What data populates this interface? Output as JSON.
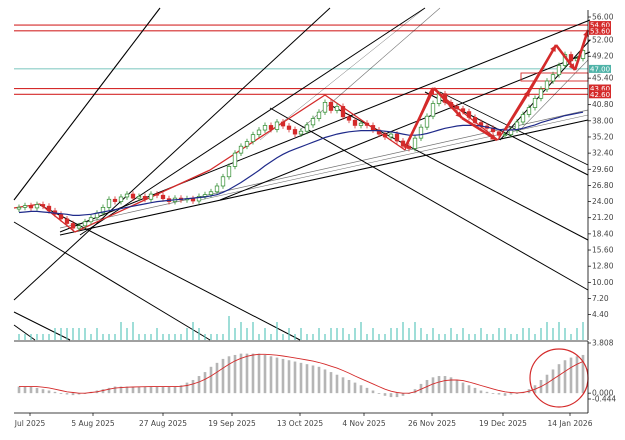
{
  "chart_data": [
    {
      "type": "candlestick",
      "title": "",
      "ylim": [
        0,
        56
      ],
      "y_ticks": [
        "56.00",
        "52.00",
        "49.20",
        "45.40",
        "40.80",
        "38.00",
        "35.20",
        "32.40",
        "29.60",
        "26.80",
        "24.00",
        "21.20",
        "18.40",
        "15.60",
        "12.80",
        "10.00",
        "7.20",
        "4.40"
      ],
      "x_ticks": [
        "Jul 2025",
        "5 Aug 2025",
        "27 Aug 2025",
        "19 Sep 2025",
        "13 Oct 2025",
        "4 Nov 2025",
        "26 Nov 2025",
        "19 Dec 2025",
        "14 Jan 2026"
      ],
      "price_tags": [
        "54.60",
        "53.60",
        "47.00",
        "43.60",
        "42.60"
      ],
      "colors": {
        "bull": "#2e8b2e",
        "bear": "#d42a2a",
        "ma": "#1f2a8a",
        "channel": "#000000",
        "level": "#d42a2a",
        "teal": "#4fb3a8",
        "volume": "#5fc7bd"
      },
      "closes": [
        23,
        23.3,
        22.9,
        23.5,
        23.2,
        22.4,
        21.8,
        21,
        20.2,
        19.4,
        19.8,
        20.5,
        21.2,
        22,
        23,
        24.4,
        24,
        24.8,
        25.3,
        24.6,
        24.9,
        24.4,
        25.3,
        25.1,
        24.5,
        24,
        24.6,
        24.3,
        24.5,
        24.1,
        24.9,
        25.2,
        25.7,
        26.7,
        28.3,
        30.1,
        32.4,
        33.6,
        34.4,
        35.6,
        36.4,
        37.2,
        36.5,
        37.8,
        37.1,
        36.5,
        35.7,
        36.2,
        37.3,
        38.4,
        39.5,
        41.2,
        39.8,
        40.5,
        38.7,
        38.1,
        37.2,
        37.6,
        37.2,
        36.4,
        35.7,
        35.2,
        35.7,
        34.5,
        33.6,
        33.2,
        35,
        36.9,
        38.8,
        41,
        42.7,
        41.2,
        40.5,
        40.1,
        39.6,
        38.6,
        37.7,
        37.1,
        36.7,
        36.1,
        35.5,
        35.6,
        36.4,
        37.8,
        39.1,
        40.3,
        41.9,
        43.5,
        44.9,
        46,
        47.6,
        49.5,
        48.4,
        48.8,
        50.2
      ],
      "volume": [
        1,
        1,
        1,
        1,
        1,
        1,
        2,
        2,
        2,
        2,
        2,
        2,
        1,
        2,
        1,
        1,
        1,
        3,
        2,
        3,
        1,
        1,
        1,
        2,
        1,
        1,
        1,
        1,
        2,
        3,
        2,
        1,
        1,
        1,
        1,
        4,
        2,
        3,
        2,
        3,
        1,
        2,
        1,
        3,
        1,
        2,
        1,
        2,
        1,
        1,
        2,
        1,
        2,
        2,
        2,
        1,
        2,
        3,
        1,
        2,
        1,
        1,
        2,
        2,
        3,
        2,
        3,
        2,
        1,
        2,
        1,
        1,
        2,
        1,
        2,
        1,
        1,
        2,
        1,
        1,
        2,
        2,
        1,
        1,
        2,
        2,
        1,
        2,
        3,
        2,
        3,
        2,
        1,
        2,
        3
      ],
      "ma": [
        22.1,
        22.2,
        22.3,
        22.3,
        22.2,
        22.1,
        22.0,
        21.9,
        21.8,
        21.6,
        21.6,
        21.7,
        21.8,
        22,
        22.2,
        22.4,
        22.6,
        22.8,
        23,
        23.2,
        23.4,
        23.6,
        23.8,
        24,
        24.1,
        24.2,
        24.3,
        24.4,
        24.5,
        24.6,
        24.7,
        24.8,
        25,
        25.2,
        25.6,
        26.1,
        26.7,
        27.3,
        28,
        28.7,
        29.4,
        30.2,
        30.9,
        31.6,
        32.2,
        32.7,
        33.1,
        33.5,
        33.9,
        34.3,
        34.7,
        35.1,
        35.4,
        35.7,
        35.9,
        36.1,
        36.2,
        36.3,
        36.3,
        36.3,
        36.3,
        36.2,
        36.1,
        35.9,
        35.7,
        35.5,
        35.5,
        35.6,
        35.8,
        36.1,
        36.4,
        36.7,
        36.9,
        37.1,
        37.2,
        37.2,
        37.2,
        37.1,
        36.9,
        36.7,
        36.5,
        36.4,
        36.4,
        36.5,
        36.7,
        37,
        37.3,
        37.7,
        38,
        38.3,
        38.6,
        38.9,
        39.1,
        39.3,
        39.5
      ]
    },
    {
      "type": "histogram",
      "title": "",
      "ylim": [
        -0.444,
        3.808
      ],
      "y_ticks": [
        "3.808",
        "0.000",
        "-0.444"
      ],
      "values": [
        0.5,
        0.5,
        0.5,
        0.4,
        0.3,
        0.2,
        0.1,
        0,
        -0.1,
        -0.15,
        -0.1,
        0,
        0.1,
        0.2,
        0.3,
        0.4,
        0.5,
        0.5,
        0.5,
        0.5,
        0.5,
        0.5,
        0.5,
        0.5,
        0.5,
        0.5,
        0.5,
        0.6,
        0.8,
        1,
        1.3,
        1.6,
        2,
        2.3,
        2.6,
        2.8,
        2.9,
        3.0,
        3.0,
        3.0,
        3.0,
        2.9,
        2.8,
        2.7,
        2.6,
        2.5,
        2.4,
        2.3,
        2.2,
        2.1,
        2,
        1.8,
        1.6,
        1.4,
        1.2,
        1.0,
        0.8,
        0.6,
        0.4,
        0.2,
        0,
        -0.2,
        -0.3,
        -0.3,
        -0.2,
        0,
        0.3,
        0.7,
        1.0,
        1.2,
        1.3,
        1.3,
        1.2,
        1.0,
        0.8,
        0.6,
        0.4,
        0.2,
        0.1,
        0,
        -0.1,
        -0.2,
        -0.1,
        0,
        0.1,
        0.3,
        0.6,
        1.0,
        1.4,
        1.8,
        2.2,
        2.5,
        2.7,
        2.8,
        2.9
      ],
      "signal": [
        0.5,
        0.5,
        0.5,
        0.5,
        0.45,
        0.4,
        0.3,
        0.2,
        0.1,
        0.05,
        0,
        0,
        0.05,
        0.1,
        0.2,
        0.3,
        0.38,
        0.42,
        0.45,
        0.47,
        0.48,
        0.49,
        0.5,
        0.5,
        0.5,
        0.5,
        0.5,
        0.52,
        0.58,
        0.7,
        0.85,
        1.05,
        1.3,
        1.6,
        1.9,
        2.2,
        2.45,
        2.65,
        2.8,
        2.9,
        2.95,
        2.95,
        2.92,
        2.88,
        2.82,
        2.75,
        2.68,
        2.6,
        2.52,
        2.43,
        2.33,
        2.2,
        2.05,
        1.9,
        1.72,
        1.52,
        1.3,
        1.1,
        0.9,
        0.7,
        0.5,
        0.3,
        0.15,
        0.05,
        0,
        0,
        0.1,
        0.3,
        0.5,
        0.7,
        0.85,
        0.95,
        1.0,
        1.0,
        0.95,
        0.85,
        0.72,
        0.58,
        0.45,
        0.32,
        0.2,
        0.1,
        0.05,
        0.02,
        0.05,
        0.15,
        0.3,
        0.5,
        0.75,
        1.05,
        1.35,
        1.65,
        1.95,
        2.2,
        2.4
      ]
    }
  ]
}
